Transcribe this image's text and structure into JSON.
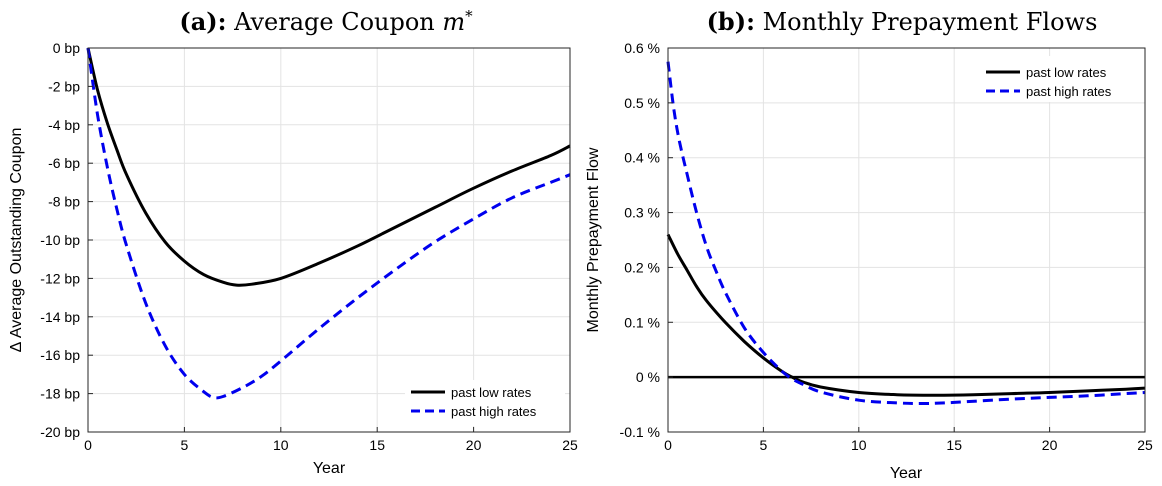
{
  "chart_data": [
    {
      "type": "line",
      "panel_tag": "(a):",
      "title": "Average Coupon",
      "title_math": "m",
      "title_sup": "*",
      "xlabel": "Year",
      "ylabel": "Δ Average Outstanding Coupon",
      "xlim": [
        0,
        25
      ],
      "ylim": [
        -20,
        0
      ],
      "xticks": [
        0,
        5,
        10,
        15,
        20,
        25
      ],
      "yticks": [
        0,
        -2,
        -4,
        -6,
        -8,
        -10,
        -12,
        -14,
        -16,
        -18,
        -20
      ],
      "ytick_labels": [
        "0 bp",
        "-2 bp",
        "-4 bp",
        "-6 bp",
        "-8 bp",
        "-10 bp",
        "-12 bp",
        "-14 bp",
        "-16 bp",
        "-18 bp",
        "-20 bp"
      ],
      "grid": true,
      "legend_position": "bottom-right",
      "series": [
        {
          "name": "past low rates",
          "color": "#000000",
          "dash": "solid",
          "x": [
            0,
            0.5,
            1,
            1.5,
            2,
            3,
            4,
            5,
            6,
            7,
            7.7,
            8.5,
            10,
            12,
            14,
            16,
            18,
            20,
            22,
            24,
            25
          ],
          "y": [
            0,
            -2.2,
            -3.9,
            -5.3,
            -6.6,
            -8.6,
            -10.1,
            -11.1,
            -11.8,
            -12.2,
            -12.35,
            -12.3,
            -12.0,
            -11.2,
            -10.3,
            -9.3,
            -8.3,
            -7.3,
            -6.4,
            -5.6,
            -5.1
          ]
        },
        {
          "name": "past high rates",
          "color": "#0000ee",
          "dash": "dashed",
          "x": [
            0,
            0.5,
            1,
            1.5,
            2,
            3,
            4,
            5,
            6,
            6.5,
            7,
            8,
            9,
            10,
            12,
            14,
            16,
            18,
            20,
            22,
            24,
            25
          ],
          "y": [
            0,
            -3.5,
            -6.2,
            -8.4,
            -10.3,
            -13.3,
            -15.5,
            -17.0,
            -17.9,
            -18.2,
            -18.15,
            -17.7,
            -17.1,
            -16.3,
            -14.6,
            -13.0,
            -11.5,
            -10.1,
            -8.9,
            -7.8,
            -7.0,
            -6.6
          ]
        }
      ]
    },
    {
      "type": "line",
      "panel_tag": "(b):",
      "title": "Monthly Prepayment Flows",
      "xlabel": "Year",
      "ylabel": "Monthly Prepayment Flow",
      "xlim": [
        0,
        25
      ],
      "ylim": [
        -0.1,
        0.6
      ],
      "xticks": [
        0,
        5,
        10,
        15,
        20,
        25
      ],
      "yticks": [
        0.6,
        0.5,
        0.4,
        0.3,
        0.2,
        0.1,
        0,
        -0.1
      ],
      "ytick_labels": [
        "0.6 %",
        "0.5 %",
        "0.4 %",
        "0.3 %",
        "0.2 %",
        "0.1 %",
        "0 %",
        "-0.1 %"
      ],
      "grid": true,
      "legend_position": "top-right",
      "series": [
        {
          "name": "past low rates",
          "color": "#000000",
          "dash": "solid",
          "x": [
            0,
            0.5,
            1,
            1.5,
            2,
            3,
            4,
            5,
            6,
            6.5,
            7,
            8,
            10,
            12,
            14,
            16,
            18,
            20,
            22,
            24,
            25
          ],
          "y": [
            0.26,
            0.225,
            0.195,
            0.165,
            0.14,
            0.1,
            0.065,
            0.035,
            0.01,
            0.0,
            -0.008,
            -0.018,
            -0.028,
            -0.032,
            -0.033,
            -0.032,
            -0.03,
            -0.028,
            -0.025,
            -0.022,
            -0.02
          ]
        },
        {
          "name": "past high rates",
          "color": "#0000ee",
          "dash": "dashed",
          "x": [
            0,
            0.3,
            0.6,
            1,
            1.5,
            2,
            2.5,
            3,
            4,
            5,
            6,
            6.5,
            7,
            8,
            10,
            12,
            13.5,
            15,
            18,
            20,
            22,
            24,
            25
          ],
          "y": [
            0.575,
            0.49,
            0.43,
            0.37,
            0.3,
            0.24,
            0.195,
            0.155,
            0.09,
            0.045,
            0.01,
            -0.003,
            -0.012,
            -0.027,
            -0.042,
            -0.047,
            -0.048,
            -0.046,
            -0.04,
            -0.037,
            -0.034,
            -0.03,
            -0.028
          ]
        },
        {
          "name": "",
          "color": "#000000",
          "dash": "solid",
          "x": [
            0,
            25
          ],
          "y": [
            0,
            0
          ],
          "reference": true
        }
      ]
    }
  ]
}
